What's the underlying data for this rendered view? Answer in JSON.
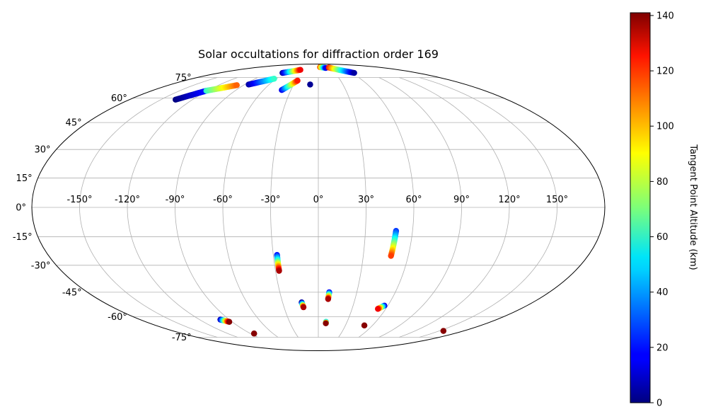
{
  "chart_data": {
    "type": "scatter",
    "projection": "mollweide",
    "title": "Solar occultations for diffraction order 169",
    "xlabel": "",
    "ylabel": "",
    "grid": true,
    "lon_ticks": [
      -150,
      -120,
      -90,
      -60,
      -30,
      0,
      30,
      60,
      90,
      120,
      150
    ],
    "lon_tick_labels": [
      "-150°",
      "-120°",
      "-90°",
      "-60°",
      "-30°",
      "0°",
      "30°",
      "60°",
      "90°",
      "120°",
      "150°"
    ],
    "lat_ticks": [
      75,
      60,
      45,
      30,
      15,
      0,
      -15,
      -30,
      -45,
      -60,
      -75
    ],
    "lat_tick_labels": [
      "75°",
      "60°",
      "45°",
      "30°",
      "15°",
      "0°",
      "-15°",
      "-30°",
      "-45°",
      "-60°",
      "-75°"
    ],
    "colorbar": {
      "label": "Tangent Point Altitude (km)",
      "colormap": "jet",
      "range": [
        0,
        141
      ],
      "ticks": [
        0,
        20,
        40,
        60,
        80,
        100,
        120,
        140
      ],
      "tick_labels": [
        "0",
        "20",
        "40",
        "60",
        "80",
        "100",
        "120",
        "140"
      ]
    },
    "tracks": [
      {
        "lon_start": -136,
        "lat_start": 59,
        "lon_end": -121,
        "lat_end": 65,
        "alt_start": 0,
        "alt_end": 20
      },
      {
        "lon_start": -121,
        "lat_start": 65,
        "lon_end": -98,
        "lat_end": 69,
        "alt_start": 60,
        "alt_end": 110
      },
      {
        "lon_start": -85,
        "lat_start": 69.5,
        "lon_end": -63,
        "lat_end": 74,
        "alt_start": 5,
        "alt_end": 60
      },
      {
        "lon_start": -65,
        "lat_start": 79,
        "lon_end": -40,
        "lat_end": 82,
        "alt_start": 5,
        "alt_end": 125
      },
      {
        "lon_start": -40,
        "lat_start": 65.5,
        "lon_end": -28,
        "lat_end": 72.5,
        "alt_start": 15,
        "alt_end": 120
      },
      {
        "lon_start": -10,
        "lat_start": 69.5,
        "lon_end": -10,
        "lat_end": 69.5,
        "alt_start": 3,
        "alt_end": 3
      },
      {
        "lon_start": 5,
        "lat_start": 85,
        "lon_end": 20,
        "lat_end": 84,
        "alt_start": 110,
        "alt_end": 15
      },
      {
        "lon_start": 30,
        "lat_start": 84.5,
        "lon_end": 65,
        "lat_end": 79,
        "alt_start": 120,
        "alt_end": 5
      },
      {
        "lon_start": -27.5,
        "lat_start": -24.5,
        "lon_end": -27.5,
        "lat_end": -33,
        "alt_start": 20,
        "alt_end": 135
      },
      {
        "lon_start": 49.5,
        "lat_start": -12,
        "lon_end": 48.5,
        "lat_end": -25,
        "alt_start": 25,
        "alt_end": 115
      },
      {
        "lon_start": -14,
        "lat_start": -51,
        "lon_end": -13,
        "lat_end": -54,
        "alt_start": 5,
        "alt_end": 135
      },
      {
        "lon_start": 8.5,
        "lat_start": -45,
        "lon_end": 8,
        "lat_end": -49,
        "alt_start": 20,
        "alt_end": 135
      },
      {
        "lon_start": 57,
        "lat_start": -53,
        "lon_end": 53,
        "lat_end": -55,
        "alt_start": 15,
        "alt_end": 125
      },
      {
        "lon_start": -99,
        "lat_start": -62,
        "lon_end": -93,
        "lat_end": -63.5,
        "alt_start": 10,
        "alt_end": 140
      },
      {
        "lon_start": 8,
        "lat_start": -63.5,
        "lon_end": 8,
        "lat_end": -64.5,
        "alt_start": 50,
        "alt_end": 140
      },
      {
        "lon_start": 51,
        "lat_start": -66,
        "lon_end": 51,
        "lat_end": -66,
        "alt_start": 140,
        "alt_end": 140
      },
      {
        "lon_start": -85,
        "lat_start": -72,
        "lon_end": -85,
        "lat_end": -72,
        "alt_start": 140,
        "alt_end": 140
      },
      {
        "lon_start": 155,
        "lat_start": -70,
        "lon_end": 155,
        "lat_end": -70,
        "alt_start": 140,
        "alt_end": 140
      }
    ]
  }
}
